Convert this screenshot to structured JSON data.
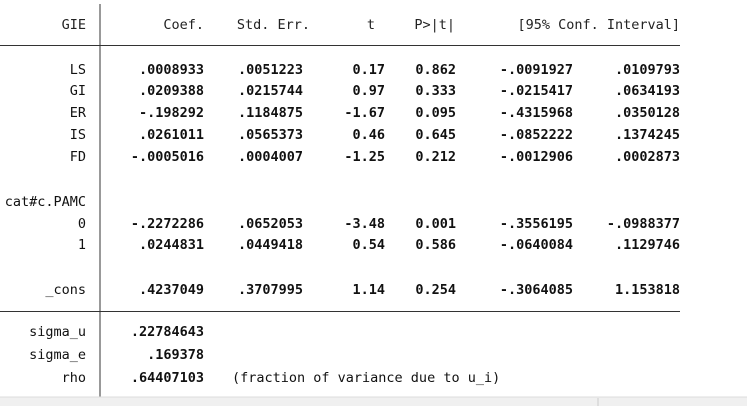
{
  "table": {
    "header": [
      "GIE",
      "Coef.",
      "Std. Err.",
      "t",
      "P>|t|",
      "[95% Conf. Interval]"
    ],
    "rows": [
      {
        "label": "LS",
        "cells": [
          ".0008933",
          ".0051223",
          "0.17",
          "0.862",
          "-.0091927",
          ".0109793"
        ]
      },
      {
        "label": "GI",
        "cells": [
          ".0209388",
          ".0215744",
          "0.97",
          "0.333",
          "-.0215417",
          ".0634193"
        ]
      },
      {
        "label": "ER",
        "cells": [
          "-.198292",
          ".1184875",
          "-1.67",
          "0.095",
          "-.4315968",
          ".0350128"
        ]
      },
      {
        "label": "IS",
        "cells": [
          ".0261011",
          ".0565373",
          "0.46",
          "0.645",
          "-.0852222",
          ".1374245"
        ]
      },
      {
        "label": "FD",
        "cells": [
          "-.0005016",
          ".0004007",
          "-1.25",
          "0.212",
          "-.0012906",
          ".0002873"
        ]
      },
      {
        "label": "cat#c.PAMC"
      },
      {
        "label": "0",
        "cells": [
          "-.2272286",
          ".0652053",
          "-3.48",
          "0.001",
          "-.3556195",
          "-.0988377"
        ]
      },
      {
        "label": "1",
        "cells": [
          ".0244831",
          ".0449418",
          "0.54",
          "0.586",
          "-.0640084",
          ".1129746"
        ]
      },
      {
        "label": "_cons",
        "cells": [
          ".4237049",
          ".3707995",
          "1.14",
          "0.254",
          "-.3064085",
          "1.153818"
        ]
      }
    ],
    "stats": [
      {
        "label": "sigma_u",
        "value": ".22784643"
      },
      {
        "label": "sigma_e",
        "value": ".169378"
      },
      {
        "label": "rho",
        "value": ".64407103",
        "note": "(fraction of variance due to u_i)"
      }
    ]
  }
}
